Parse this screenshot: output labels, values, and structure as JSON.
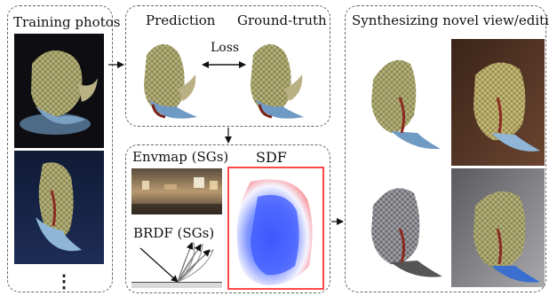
{
  "training": {
    "title": "Training photos",
    "more": "⋮"
  },
  "top": {
    "prediction": "Prediction",
    "ground_truth": "Ground-truth",
    "loss": "Loss"
  },
  "bottom": {
    "envmap": "Envmap (SGs)",
    "brdf": "BRDF (SGs)",
    "sdf": "SDF"
  },
  "right": {
    "title": "Synthesizing novel view/editing"
  },
  "icons": [
    "fish-figurine-icon",
    "envmap-panorama-icon",
    "brdf-lobe-icon",
    "sdf-slice-icon"
  ],
  "colors": {
    "dashed_border": "#666666",
    "sdf_blue": "#3a5bff",
    "sdf_red": "#ff4a4a"
  }
}
